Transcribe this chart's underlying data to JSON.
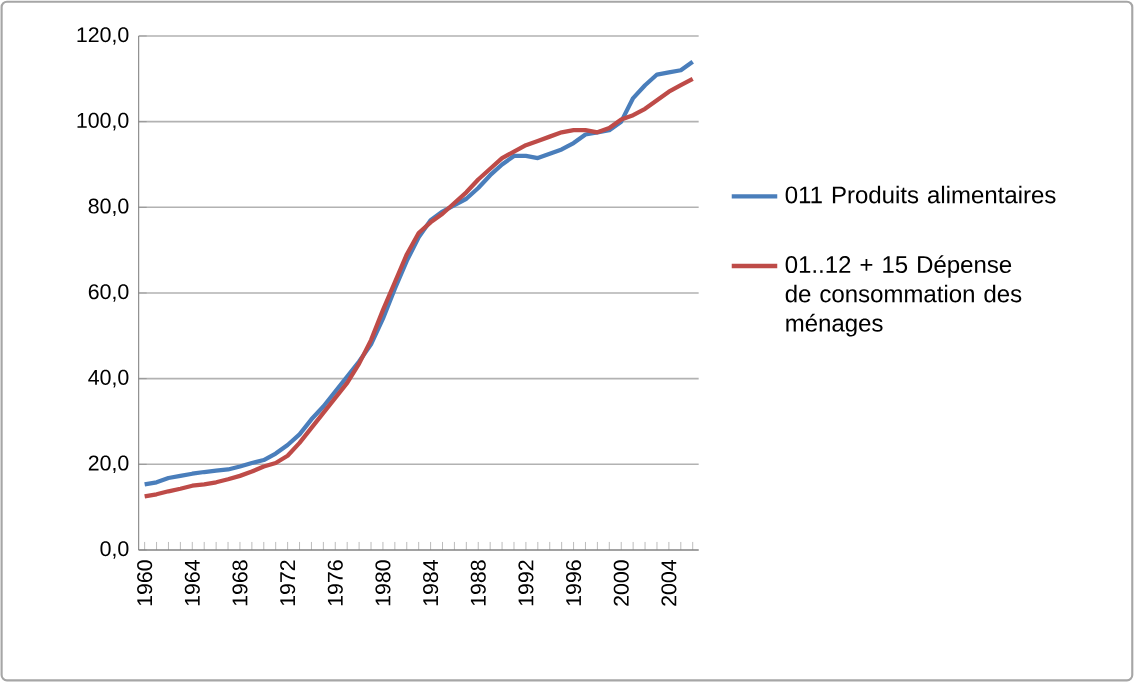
{
  "chart_data": {
    "type": "line",
    "categories": [
      "1960",
      null,
      null,
      null,
      "1964",
      null,
      null,
      null,
      "1968",
      null,
      null,
      null,
      "1972",
      null,
      null,
      null,
      "1976",
      null,
      null,
      null,
      "1980",
      null,
      null,
      null,
      "1984",
      null,
      null,
      null,
      "1988",
      null,
      null,
      null,
      "1992",
      null,
      null,
      null,
      "1996",
      null,
      null,
      null,
      "2000",
      null,
      null,
      null,
      "2004",
      null,
      null
    ],
    "series": [
      {
        "name": "011 Produits alimentaires",
        "color": "#4a7ebb",
        "values": [
          15.3,
          15.8,
          16.8,
          17.3,
          17.8,
          18.2,
          18.5,
          18.8,
          19.5,
          20.3,
          21,
          22.5,
          24.5,
          27,
          30.5,
          33.5,
          37,
          40.5,
          44,
          48,
          54,
          61,
          67.5,
          73,
          77,
          79,
          80.5,
          82,
          84.5,
          87.5,
          90,
          92,
          92,
          91.5,
          92.5,
          93.5,
          95,
          97,
          97.5,
          98,
          100,
          105.5,
          108.5,
          111,
          111.5,
          112,
          114
        ]
      },
      {
        "name": "01..12 + 15 Dépense de consommation des ménages",
        "color": "#be4b48",
        "values": [
          12.5,
          13,
          13.7,
          14.3,
          15,
          15.3,
          15.8,
          16.5,
          17.3,
          18.3,
          19.5,
          20.3,
          22,
          25,
          28.5,
          32,
          35.5,
          39,
          43.5,
          49,
          56,
          62.5,
          69,
          74,
          76.5,
          78.5,
          81,
          83.5,
          86.5,
          89,
          91.5,
          93,
          94.5,
          95.5,
          96.5,
          97.5,
          98,
          98,
          97.5,
          98.5,
          100.5,
          101.5,
          103,
          105,
          107,
          108.5,
          110
        ]
      }
    ],
    "ylim": [
      0,
      120
    ],
    "yticks": [
      {
        "value": 0,
        "label": "0,0"
      },
      {
        "value": 20,
        "label": "20,0"
      },
      {
        "value": 40,
        "label": "40,0"
      },
      {
        "value": 60,
        "label": "60,0"
      },
      {
        "value": 80,
        "label": "80,0"
      },
      {
        "value": 100,
        "label": "100,0"
      },
      {
        "value": 120,
        "label": "120,0"
      }
    ],
    "grid": "y",
    "legend": "right",
    "marker": "none",
    "line_style": "solid"
  }
}
